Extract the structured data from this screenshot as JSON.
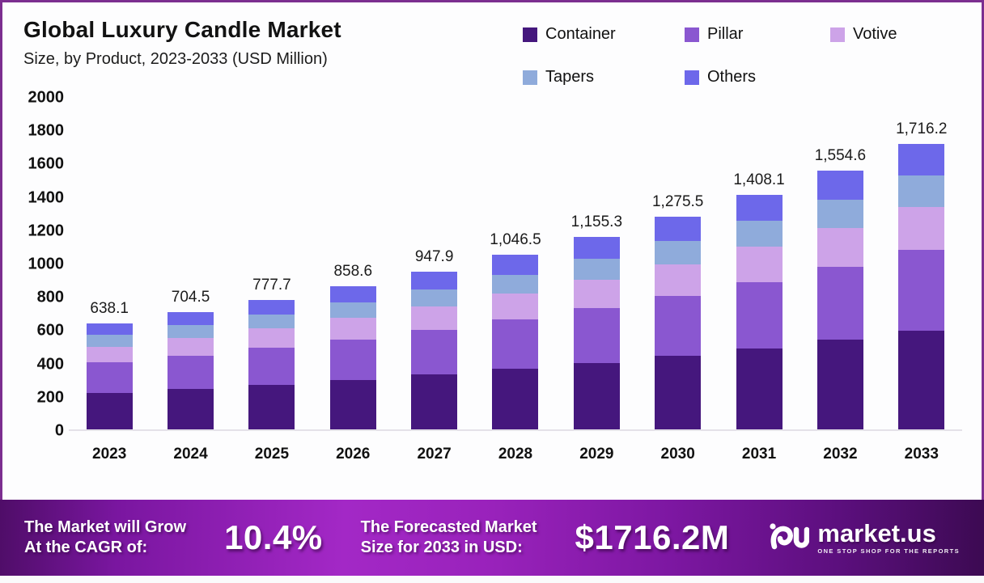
{
  "chart_data": {
    "type": "bar",
    "stacked": true,
    "title": "Global Luxury Candle Market",
    "subtitle": "Size, by Product, 2023-2033 (USD Million)",
    "xlabel": "",
    "ylabel": "",
    "ylim": [
      0,
      2000
    ],
    "yticks": [
      0,
      200,
      400,
      600,
      800,
      1000,
      1200,
      1400,
      1600,
      1800,
      2000
    ],
    "grid": false,
    "legend_position": "top-right",
    "categories": [
      "2023",
      "2024",
      "2025",
      "2026",
      "2027",
      "2028",
      "2029",
      "2030",
      "2031",
      "2032",
      "2033"
    ],
    "totals": [
      638.1,
      704.5,
      777.7,
      858.6,
      947.9,
      1046.5,
      1155.3,
      1275.5,
      1408.1,
      1554.6,
      1716.2
    ],
    "total_labels": [
      "638.1",
      "704.5",
      "777.7",
      "858.6",
      "947.9",
      "1,046.5",
      "1,155.3",
      "1,275.5",
      "1,408.1",
      "1,554.6",
      "1,716.2"
    ],
    "series": [
      {
        "name": "Container",
        "color": "#45177d",
        "values": [
          220.8,
          243.8,
          269.1,
          297.1,
          328.0,
          362.1,
          399.7,
          441.3,
          487.2,
          537.9,
          593.8
        ]
      },
      {
        "name": "Pillar",
        "color": "#8a57d0",
        "values": [
          180.6,
          199.4,
          220.1,
          243.0,
          268.3,
          296.2,
          327.0,
          361.0,
          398.5,
          440.0,
          485.7
        ]
      },
      {
        "name": "Votive",
        "color": "#cda3e8",
        "values": [
          95.1,
          105.0,
          115.9,
          127.9,
          141.2,
          155.9,
          172.1,
          190.1,
          209.8,
          231.6,
          255.7
        ]
      },
      {
        "name": "Tapers",
        "color": "#8fabdb",
        "values": [
          70.2,
          77.5,
          85.5,
          94.4,
          104.3,
          115.1,
          127.1,
          140.3,
          154.9,
          171.0,
          188.8
        ]
      },
      {
        "name": "Others",
        "color": "#6d68ea",
        "values": [
          71.4,
          78.8,
          87.1,
          96.2,
          106.1,
          117.2,
          129.4,
          142.8,
          157.7,
          174.1,
          192.2
        ]
      }
    ]
  },
  "footer": {
    "cagr_label_line1": "The Market will Grow",
    "cagr_label_line2": "At the CAGR of:",
    "cagr_value": "10.4%",
    "forecast_label_line1": "The Forecasted Market",
    "forecast_label_line2": "Size for 2033 in USD:",
    "forecast_value": "$1716.2M",
    "brand_name": "market.us",
    "brand_tagline": "ONE STOP SHOP FOR THE REPORTS"
  },
  "colors": {
    "card_border": "#7c2e90",
    "baseline": "#e4e1e8",
    "footer_gradient_start": "#4f0d68",
    "footer_gradient_mid": "#a328c6",
    "footer_gradient_end": "#3c0a52"
  }
}
